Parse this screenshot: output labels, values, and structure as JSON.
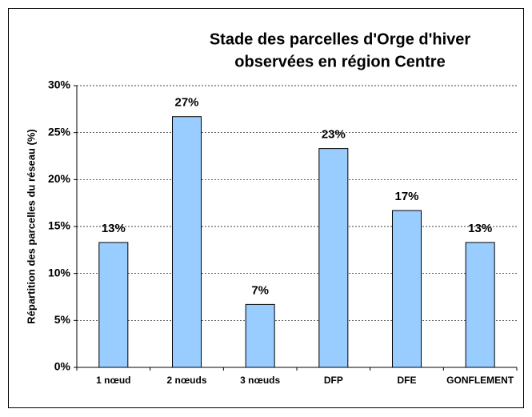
{
  "chart_data": {
    "type": "bar",
    "title": [
      "Stade des parcelles d'Orge d'hiver",
      "observées en région Centre"
    ],
    "y_axis_label": "Répartition des parcelles du réseau (%)",
    "categories": [
      "1 nœud",
      "2 nœuds",
      "3 nœuds",
      "DFP",
      "DFE",
      "GONFLEMENT"
    ],
    "values": [
      13.3,
      26.7,
      6.7,
      23.3,
      16.7,
      13.3
    ],
    "value_labels": [
      "13%",
      "27%",
      "7%",
      "23%",
      "17%",
      "13%"
    ],
    "color": "#99ccff",
    "ylim": [
      0,
      30
    ],
    "yticks": [
      {
        "value": 0,
        "label": "0%"
      },
      {
        "value": 5,
        "label": "5%"
      },
      {
        "value": 10,
        "label": "10%"
      },
      {
        "value": 15,
        "label": "15%"
      },
      {
        "value": 20,
        "label": "20%"
      },
      {
        "value": 25,
        "label": "25%"
      },
      {
        "value": 30,
        "label": "30%"
      }
    ],
    "grid": true
  }
}
